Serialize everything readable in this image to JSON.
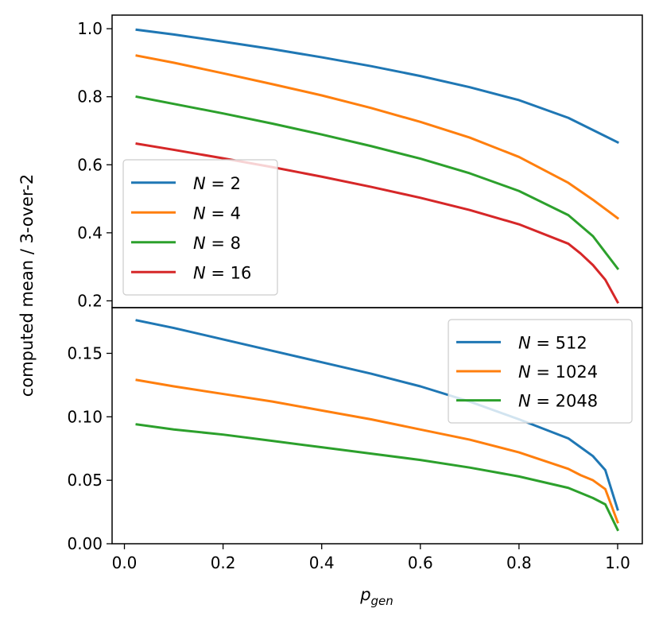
{
  "chart_data": [
    {
      "panel": "top",
      "type": "line",
      "xlim": [
        -0.025,
        1.05
      ],
      "ylim": [
        0.18,
        1.04
      ],
      "yticks": [
        "0.2",
        "0.4",
        "0.6",
        "0.8",
        "1.0"
      ],
      "ytick_values": [
        0.2,
        0.4,
        0.6,
        0.8,
        1.0
      ],
      "legend_position": "middle-left",
      "series": [
        {
          "name": "N = 2",
          "legend_var": "N",
          "legend_eq": " = 2",
          "color": "#1f77b4",
          "x": [
            0.025,
            0.1,
            0.2,
            0.3,
            0.4,
            0.5,
            0.6,
            0.7,
            0.8,
            0.9,
            1.0
          ],
          "y": [
            0.997,
            0.983,
            0.962,
            0.94,
            0.916,
            0.89,
            0.861,
            0.828,
            0.79,
            0.738,
            0.666
          ]
        },
        {
          "name": "N = 4",
          "legend_var": "N",
          "legend_eq": " = 4",
          "color": "#ff7f0e",
          "x": [
            0.025,
            0.1,
            0.2,
            0.3,
            0.4,
            0.5,
            0.6,
            0.7,
            0.8,
            0.9,
            0.95,
            1.0
          ],
          "y": [
            0.921,
            0.9,
            0.869,
            0.837,
            0.804,
            0.767,
            0.726,
            0.68,
            0.623,
            0.547,
            0.497,
            0.443
          ]
        },
        {
          "name": "N = 8",
          "legend_var": "N",
          "legend_eq": " = 8",
          "color": "#2ca02c",
          "x": [
            0.025,
            0.1,
            0.2,
            0.3,
            0.4,
            0.5,
            0.6,
            0.7,
            0.8,
            0.9,
            0.95,
            1.0
          ],
          "y": [
            0.8,
            0.779,
            0.751,
            0.721,
            0.689,
            0.655,
            0.618,
            0.575,
            0.523,
            0.452,
            0.39,
            0.295
          ]
        },
        {
          "name": "N = 16",
          "legend_var": "N",
          "legend_eq": " = 16",
          "color": "#d62728",
          "x": [
            0.025,
            0.1,
            0.2,
            0.3,
            0.4,
            0.5,
            0.6,
            0.7,
            0.8,
            0.9,
            0.925,
            0.95,
            0.975,
            1.0
          ],
          "y": [
            0.662,
            0.644,
            0.619,
            0.593,
            0.565,
            0.535,
            0.503,
            0.467,
            0.425,
            0.368,
            0.339,
            0.305,
            0.262,
            0.196
          ]
        }
      ]
    },
    {
      "panel": "bottom",
      "type": "line",
      "xlim": [
        -0.025,
        1.05
      ],
      "ylim": [
        0.0,
        0.186
      ],
      "xticks": [
        "0.0",
        "0.2",
        "0.4",
        "0.6",
        "0.8",
        "1.0"
      ],
      "xtick_values": [
        0.0,
        0.2,
        0.4,
        0.6,
        0.8,
        1.0
      ],
      "yticks": [
        "0.00",
        "0.05",
        "0.10",
        "0.15"
      ],
      "ytick_values": [
        0.0,
        0.05,
        0.1,
        0.15
      ],
      "legend_position": "top-right",
      "series": [
        {
          "name": "N = 512",
          "legend_var": "N",
          "legend_eq": " = 512",
          "color": "#1f77b4",
          "x": [
            0.025,
            0.1,
            0.2,
            0.3,
            0.4,
            0.5,
            0.6,
            0.7,
            0.8,
            0.9,
            0.925,
            0.95,
            0.975,
            1.0
          ],
          "y": [
            0.176,
            0.17,
            0.161,
            0.152,
            0.143,
            0.134,
            0.124,
            0.112,
            0.098,
            0.083,
            0.076,
            0.069,
            0.058,
            0.027
          ]
        },
        {
          "name": "N = 1024",
          "legend_var": "N",
          "legend_eq": " = 1024",
          "color": "#ff7f0e",
          "x": [
            0.025,
            0.1,
            0.2,
            0.3,
            0.4,
            0.5,
            0.6,
            0.7,
            0.8,
            0.9,
            0.925,
            0.95,
            0.975,
            1.0
          ],
          "y": [
            0.129,
            0.124,
            0.118,
            0.112,
            0.105,
            0.098,
            0.09,
            0.082,
            0.072,
            0.059,
            0.054,
            0.05,
            0.043,
            0.017
          ]
        },
        {
          "name": "N = 2048",
          "legend_var": "N",
          "legend_eq": " = 2048",
          "color": "#2ca02c",
          "x": [
            0.025,
            0.1,
            0.2,
            0.3,
            0.4,
            0.5,
            0.6,
            0.7,
            0.8,
            0.9,
            0.925,
            0.95,
            0.975,
            1.0
          ],
          "y": [
            0.094,
            0.09,
            0.086,
            0.081,
            0.076,
            0.071,
            0.066,
            0.06,
            0.053,
            0.044,
            0.04,
            0.036,
            0.031,
            0.011
          ]
        }
      ]
    }
  ],
  "axes": {
    "ylabel": "computed mean / 3-over-2",
    "xlabel_base": "p",
    "xlabel_sub": "gen"
  }
}
